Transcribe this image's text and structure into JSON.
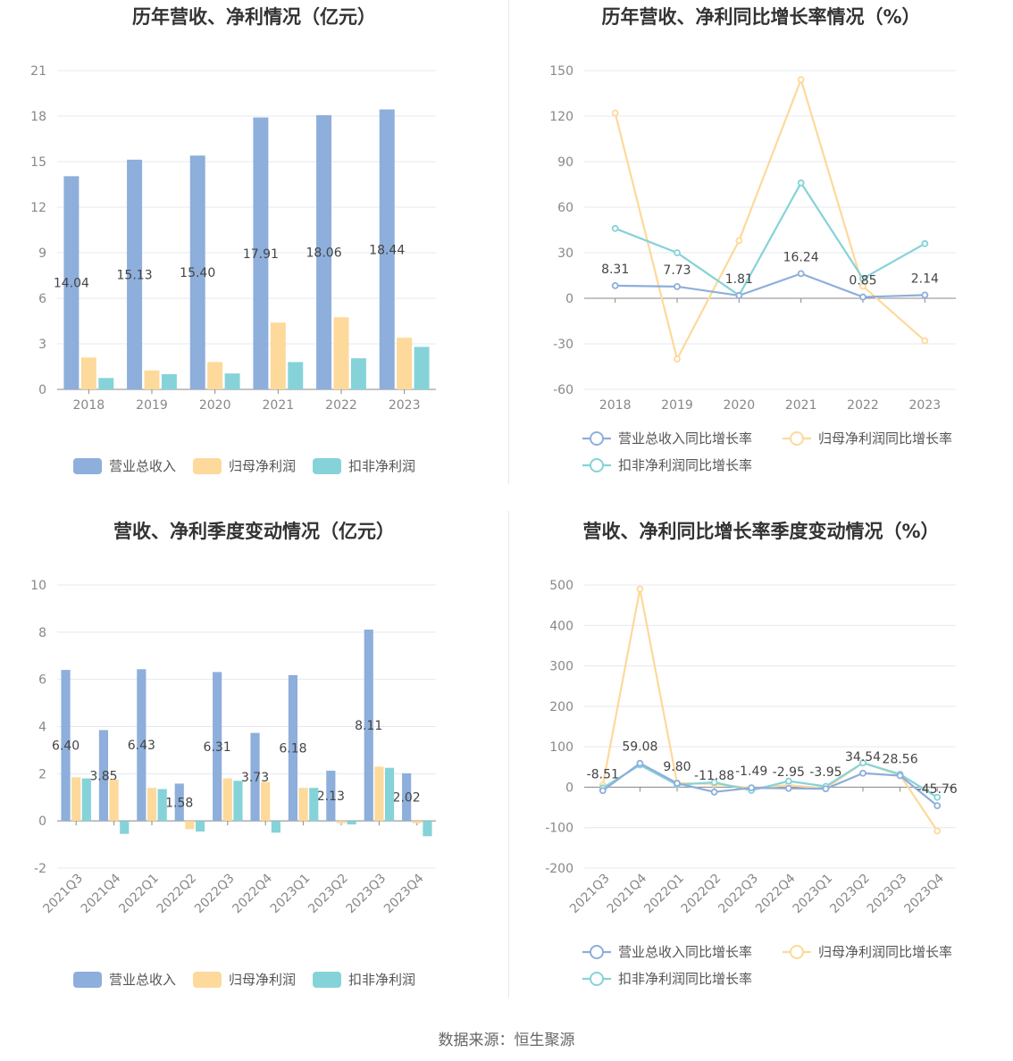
{
  "source_text": "数据来源：恒生聚源",
  "colors": {
    "revenue": "#8eaedb",
    "parent_profit": "#fdd99b",
    "deducted_profit": "#85d3d8"
  },
  "chart_data": [
    {
      "type": "bar",
      "title": "历年营收、净利情况（亿元）",
      "categories": [
        "2018",
        "2019",
        "2020",
        "2021",
        "2022",
        "2023"
      ],
      "ylim": [
        0,
        21
      ],
      "yticks": [
        0,
        3,
        6,
        9,
        12,
        15,
        18,
        21
      ],
      "grid": true,
      "legend": "bottom",
      "series": [
        {
          "name": "营业总收入",
          "values": [
            14.04,
            15.13,
            15.4,
            17.91,
            18.06,
            18.44
          ],
          "labels": [
            "14.04",
            "15.13",
            "15.40",
            "17.91",
            "18.06",
            "18.44"
          ]
        },
        {
          "name": "归母净利润",
          "values": [
            2.1,
            1.25,
            1.8,
            4.4,
            4.75,
            3.4
          ]
        },
        {
          "name": "扣非净利润",
          "values": [
            0.75,
            1.0,
            1.05,
            1.8,
            2.05,
            2.8
          ]
        }
      ]
    },
    {
      "type": "line",
      "title": "历年营收、净利同比增长率情况（%）",
      "categories": [
        "2018",
        "2019",
        "2020",
        "2021",
        "2022",
        "2023"
      ],
      "ylim": [
        -60,
        150
      ],
      "yticks": [
        -60,
        -30,
        0,
        30,
        60,
        90,
        120,
        150
      ],
      "grid": true,
      "legend": "bottom",
      "series": [
        {
          "name": "营业总收入同比增长率",
          "values": [
            8.31,
            7.73,
            1.81,
            16.24,
            0.85,
            2.14
          ],
          "labels": [
            "8.31",
            "7.73",
            "1.81",
            "16.24",
            "0.85",
            "2.14"
          ]
        },
        {
          "name": "归母净利润同比增长率",
          "values": [
            122,
            -40,
            38,
            144,
            8,
            -28
          ]
        },
        {
          "name": "扣非净利润同比增长率",
          "values": [
            46,
            30,
            2,
            76,
            13,
            36
          ]
        }
      ]
    },
    {
      "type": "bar",
      "title": "营收、净利季度变动情况（亿元）",
      "categories": [
        "2021Q3",
        "2021Q4",
        "2022Q1",
        "2022Q2",
        "2022Q3",
        "2022Q4",
        "2023Q1",
        "2023Q2",
        "2023Q3",
        "2023Q4"
      ],
      "ylim": [
        -2,
        10
      ],
      "yticks": [
        -2,
        0,
        2,
        4,
        6,
        8,
        10
      ],
      "grid": true,
      "legend": "bottom",
      "series": [
        {
          "name": "营业总收入",
          "values": [
            6.4,
            3.85,
            6.43,
            1.58,
            6.31,
            3.73,
            6.18,
            2.13,
            8.11,
            2.02
          ],
          "labels": [
            "6.40",
            "3.85",
            "6.43",
            "1.58",
            "6.31",
            "3.73",
            "6.18",
            "2.13",
            "8.11",
            "2.02"
          ]
        },
        {
          "name": "归母净利润",
          "values": [
            1.85,
            1.75,
            1.4,
            -0.35,
            1.8,
            1.65,
            1.4,
            -0.1,
            2.3,
            -0.1
          ]
        },
        {
          "name": "扣非净利润",
          "values": [
            1.8,
            -0.55,
            1.35,
            -0.45,
            1.7,
            -0.5,
            1.4,
            -0.15,
            2.25,
            -0.65
          ]
        }
      ]
    },
    {
      "type": "line",
      "title": "营收、净利同比增长率季度变动情况（%）",
      "categories": [
        "2021Q3",
        "2021Q4",
        "2022Q1",
        "2022Q2",
        "2022Q3",
        "2022Q4",
        "2023Q1",
        "2023Q2",
        "2023Q3",
        "2023Q4"
      ],
      "ylim": [
        -200,
        500
      ],
      "yticks": [
        -200,
        -100,
        0,
        100,
        200,
        300,
        400,
        500
      ],
      "grid": true,
      "legend": "bottom",
      "series": [
        {
          "name": "营业总收入同比增长率",
          "values": [
            -8.51,
            59.08,
            9.8,
            -11.88,
            -1.49,
            -2.95,
            -3.95,
            34.54,
            28.56,
            -45.76
          ],
          "labels": [
            "-8.51",
            "59.08",
            "9.80",
            "-11.88",
            "-1.49",
            "-2.95",
            "-3.95",
            "34.54",
            "28.56",
            "-45.76"
          ]
        },
        {
          "name": "归母净利润同比增长率",
          "values": [
            5,
            490,
            10,
            8,
            -2,
            5,
            -3,
            60,
            30,
            -108
          ]
        },
        {
          "name": "扣非净利润同比增长率",
          "values": [
            -2,
            55,
            6,
            12,
            -8,
            15,
            2,
            60,
            32,
            -25
          ]
        }
      ]
    }
  ]
}
